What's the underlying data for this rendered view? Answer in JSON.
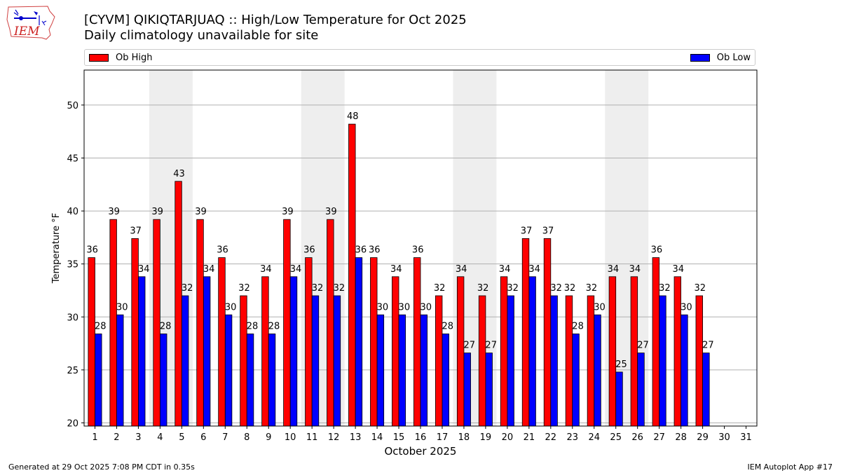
{
  "logo": {
    "text": "IEM"
  },
  "header": {
    "title": "[CYVM] QIKIQTARJUAQ :: High/Low Temperature for Oct 2025",
    "subtitle": "Daily climatology unavailable for site"
  },
  "legend": {
    "high_label": "Ob High",
    "low_label": "Ob Low"
  },
  "colors": {
    "high": "#ff0000",
    "low": "#0000ff",
    "weekend_band": "#eeeeee"
  },
  "chart_data": {
    "type": "bar",
    "title": "[CYVM] QIKIQTARJUAQ :: High/Low Temperature for Oct 2025",
    "subtitle": "Daily climatology unavailable for site",
    "xlabel": "October 2025",
    "ylabel": "Temperature °F",
    "ylim": [
      19.7,
      53.3
    ],
    "yticks": [
      20,
      25,
      30,
      35,
      40,
      45,
      50
    ],
    "grid": "horizontal",
    "categories": [
      "1",
      "2",
      "3",
      "4",
      "5",
      "6",
      "7",
      "8",
      "9",
      "10",
      "11",
      "12",
      "13",
      "14",
      "15",
      "16",
      "17",
      "18",
      "19",
      "20",
      "21",
      "22",
      "23",
      "24",
      "25",
      "26",
      "27",
      "28",
      "29",
      "30",
      "31"
    ],
    "weekend_bands": [
      [
        4,
        5
      ],
      [
        11,
        12
      ],
      [
        18,
        19
      ],
      [
        25,
        26
      ]
    ],
    "series": [
      {
        "name": "Ob High",
        "color": "#ff0000",
        "values": [
          35.6,
          39.2,
          37.4,
          39.2,
          42.8,
          39.2,
          35.6,
          32.0,
          33.8,
          39.2,
          35.6,
          39.2,
          48.2,
          35.6,
          33.8,
          35.6,
          32.0,
          33.8,
          32.0,
          33.8,
          37.4,
          37.4,
          32.0,
          32.0,
          33.8,
          33.8,
          35.6,
          33.8,
          32.0,
          null,
          null
        ],
        "labels": [
          "36",
          "39",
          "37",
          "39",
          "43",
          "39",
          "36",
          "32",
          "34",
          "39",
          "36",
          "39",
          "48",
          "36",
          "34",
          "36",
          "32",
          "34",
          "32",
          "34",
          "37",
          "37",
          "32",
          "32",
          "34",
          "34",
          "36",
          "34",
          "32",
          "",
          ""
        ]
      },
      {
        "name": "Ob Low",
        "color": "#0000ff",
        "values": [
          28.4,
          30.2,
          33.8,
          28.4,
          32.0,
          33.8,
          30.2,
          28.4,
          28.4,
          33.8,
          32.0,
          32.0,
          35.6,
          30.2,
          30.2,
          30.2,
          28.4,
          26.6,
          26.6,
          32.0,
          33.8,
          32.0,
          28.4,
          30.2,
          24.8,
          26.6,
          32.0,
          30.2,
          26.6,
          null,
          null
        ],
        "labels": [
          "28",
          "30",
          "34",
          "28",
          "32",
          "34",
          "30",
          "28",
          "28",
          "34",
          "32",
          "32",
          "36",
          "30",
          "30",
          "30",
          "28",
          "27",
          "27",
          "32",
          "34",
          "32",
          "28",
          "30",
          "25",
          "27",
          "32",
          "30",
          "27",
          "",
          ""
        ]
      }
    ]
  },
  "footer": {
    "left": "Generated at 29 Oct 2025 7:08 PM CDT in 0.35s",
    "right": "IEM Autoplot App #17"
  }
}
